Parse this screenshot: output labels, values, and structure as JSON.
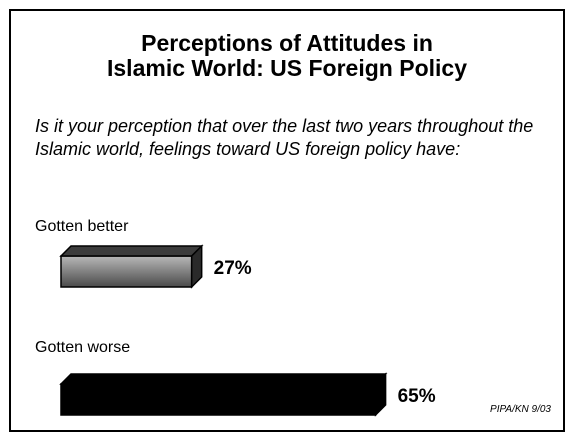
{
  "chart_data": {
    "type": "bar",
    "title_lines": [
      "Perceptions of Attitudes in",
      "Islamic World:  US Foreign Policy"
    ],
    "subtitle": "Is it your perception that over the last two years throughout the Islamic world, feelings toward US foreign policy have:",
    "categories": [
      "Gotten better",
      "Gotten worse"
    ],
    "values": [
      27,
      65
    ],
    "value_labels": [
      "27%",
      "65%"
    ],
    "colors": [
      "#7a7a7a",
      "#000000"
    ],
    "xlim": [
      0,
      100
    ],
    "source": "PIPA/KN 9/03"
  }
}
